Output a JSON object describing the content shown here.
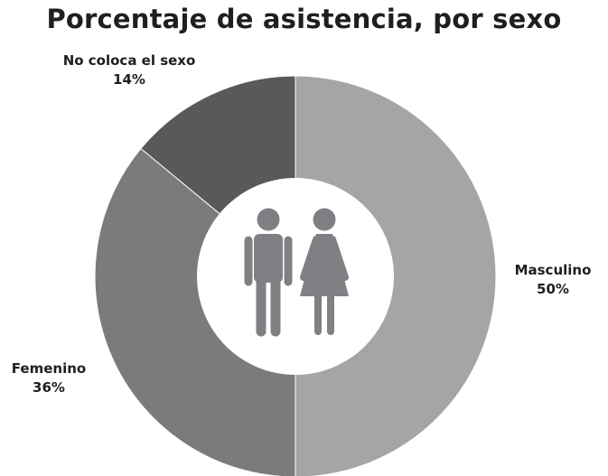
{
  "chart_data": {
    "type": "pie",
    "variant": "donut",
    "title": "Porcentaje de asistencia, por sexo",
    "slices": [
      {
        "label": "Masculino",
        "value": 50,
        "value_label": "50%",
        "color": "#a4a5a7"
      },
      {
        "label": "Femenino",
        "value": 36,
        "value_label": "36%",
        "color": "#7a7b7d"
      },
      {
        "label": "No coloca el sexo",
        "value": 14,
        "value_label": "14%",
        "color": "#58595b"
      }
    ],
    "center_icon": "man-woman-icon",
    "center_icon_color": "#7f8083",
    "legend": "none"
  }
}
